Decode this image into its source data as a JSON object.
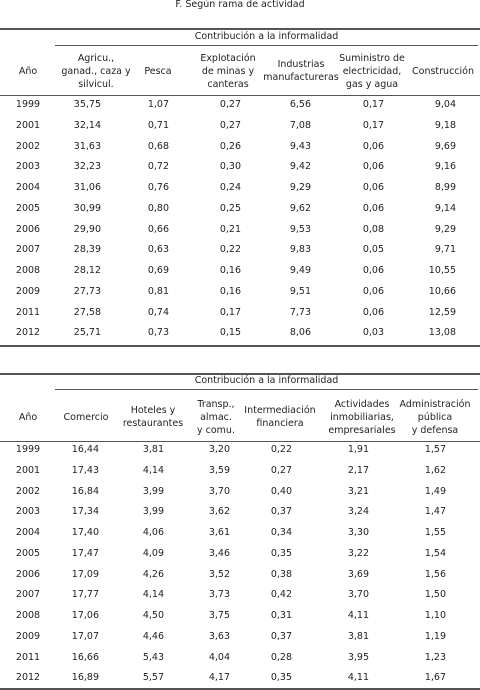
{
  "title": "F. Según rama de actividad",
  "tables": [
    {
      "group_header": "Contribución a la informalidad",
      "columns": [
        [
          "Año"
        ],
        [
          "Agricu.,",
          "ganad., caza y",
          "silvicul."
        ],
        [
          "Pesca"
        ],
        [
          "Explotación",
          "de minas y",
          "canteras"
        ],
        [
          "Industrias",
          "manufactureras"
        ],
        [
          "Suministro de",
          "electricidad,",
          "gas y agua"
        ],
        [
          "Construcción"
        ]
      ],
      "rows": [
        [
          "1999",
          "35,75",
          "1,07",
          "0,27",
          "6,56",
          "0,17",
          "9,04"
        ],
        [
          "2001",
          "32,14",
          "0,71",
          "0,27",
          "7,08",
          "0,17",
          "9,18"
        ],
        [
          "2002",
          "31,63",
          "0,68",
          "0,26",
          "9,43",
          "0,06",
          "9,69"
        ],
        [
          "2003",
          "32,23",
          "0,72",
          "0,30",
          "9,42",
          "0,06",
          "9,16"
        ],
        [
          "2004",
          "31,06",
          "0,76",
          "0,24",
          "9,29",
          "0,06",
          "8,99"
        ],
        [
          "2005",
          "30,99",
          "0,80",
          "0,25",
          "9,62",
          "0,06",
          "9,14"
        ],
        [
          "2006",
          "29,90",
          "0,66",
          "0,21",
          "9,53",
          "0,08",
          "9,29"
        ],
        [
          "2007",
          "28,39",
          "0,63",
          "0,22",
          "9,83",
          "0,05",
          "9,71"
        ],
        [
          "2008",
          "28,12",
          "0,69",
          "0,16",
          "9,49",
          "0,06",
          "10,55"
        ],
        [
          "2009",
          "27,73",
          "0,81",
          "0,16",
          "9,51",
          "0,06",
          "10,66"
        ],
        [
          "2011",
          "27,58",
          "0,74",
          "0,17",
          "7,73",
          "0,06",
          "12,59"
        ],
        [
          "2012",
          "25,71",
          "0,73",
          "0,15",
          "8,06",
          "0,03",
          "13,08"
        ]
      ]
    },
    {
      "group_header": "Contribución a la informalidad",
      "columns": [
        [
          "Año"
        ],
        [
          "Comercio"
        ],
        [
          "Hoteles y",
          "restaurantes"
        ],
        [
          "Transp.,",
          "almac.",
          "y comu."
        ],
        [
          "Intermediación",
          "financiera"
        ],
        [
          "Actividades",
          "inmobiliarias,",
          "empresariales"
        ],
        [
          "Administración",
          "pública",
          "y defensa"
        ]
      ],
      "rows": [
        [
          "1999",
          "16,44",
          "3,81",
          "3,20",
          "0,22",
          "1,91",
          "1,57"
        ],
        [
          "2001",
          "17,43",
          "4,14",
          "3,59",
          "0,27",
          "2,17",
          "1,62"
        ],
        [
          "2002",
          "16,84",
          "3,99",
          "3,70",
          "0,40",
          "3,21",
          "1,49"
        ],
        [
          "2003",
          "17,34",
          "3,99",
          "3,62",
          "0,37",
          "3,24",
          "1,47"
        ],
        [
          "2004",
          "17,40",
          "4,06",
          "3,61",
          "0,34",
          "3,30",
          "1,55"
        ],
        [
          "2005",
          "17,47",
          "4,09",
          "3,46",
          "0,35",
          "3,22",
          "1,54"
        ],
        [
          "2006",
          "17,09",
          "4,26",
          "3,52",
          "0,38",
          "3,69",
          "1,56"
        ],
        [
          "2007",
          "17,77",
          "4,14",
          "3,73",
          "0,42",
          "3,70",
          "1,50"
        ],
        [
          "2008",
          "17,06",
          "4,50",
          "3,75",
          "0,31",
          "4,11",
          "1,10"
        ],
        [
          "2009",
          "17,07",
          "4,46",
          "3,63",
          "0,37",
          "3,81",
          "1,19"
        ],
        [
          "2011",
          "16,66",
          "5,43",
          "4,04",
          "0,28",
          "3,95",
          "1,23"
        ],
        [
          "2012",
          "16,89",
          "5,57",
          "4,17",
          "0,35",
          "4,11",
          "1,67"
        ]
      ]
    }
  ]
}
